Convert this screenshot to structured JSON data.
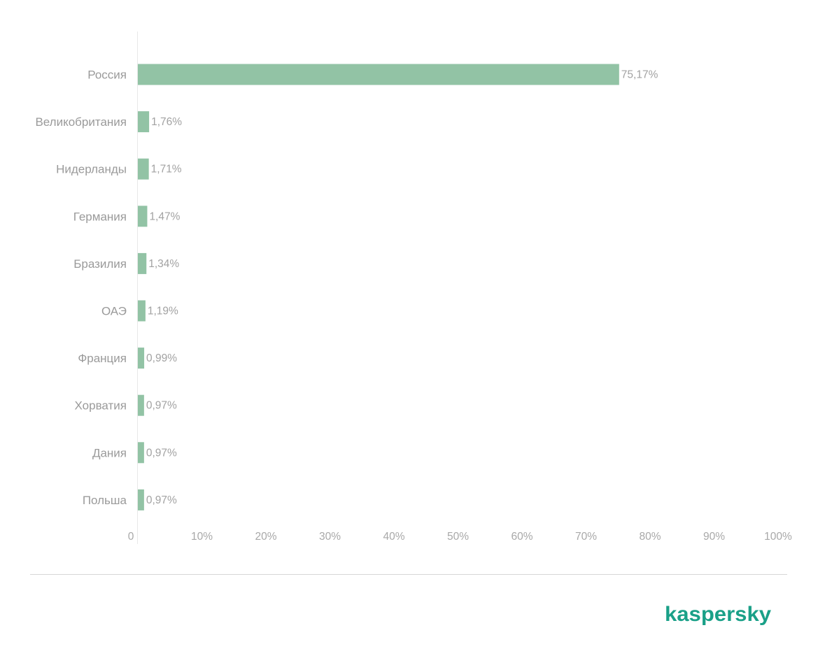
{
  "chart_data": {
    "type": "bar",
    "orientation": "horizontal",
    "categories": [
      "Россия",
      "Великобритания",
      "Нидерланды",
      "Германия",
      "Бразилия",
      "ОАЭ",
      "Франция",
      "Хорватия",
      "Дания",
      "Польша"
    ],
    "values": [
      75.17,
      1.76,
      1.71,
      1.47,
      1.34,
      1.19,
      0.99,
      0.97,
      0.97,
      0.97
    ],
    "value_labels": [
      "75,17%",
      "1,76%",
      "1,71%",
      "1,47%",
      "1,34%",
      "1,19%",
      "0,99%",
      "0,97%",
      "0,97%",
      "0,97%"
    ],
    "xticks": [
      "0",
      "10%",
      "20%",
      "30%",
      "40%",
      "50%",
      "60%",
      "70%",
      "80%",
      "90%",
      "100%"
    ],
    "xlim": [
      0,
      100
    ],
    "grid": false,
    "bar_color": "#92c3a5",
    "title": "",
    "xlabel": "",
    "ylabel": ""
  },
  "brand": {
    "logo_text": "kaspersky",
    "logo_color": "#1aa088"
  }
}
